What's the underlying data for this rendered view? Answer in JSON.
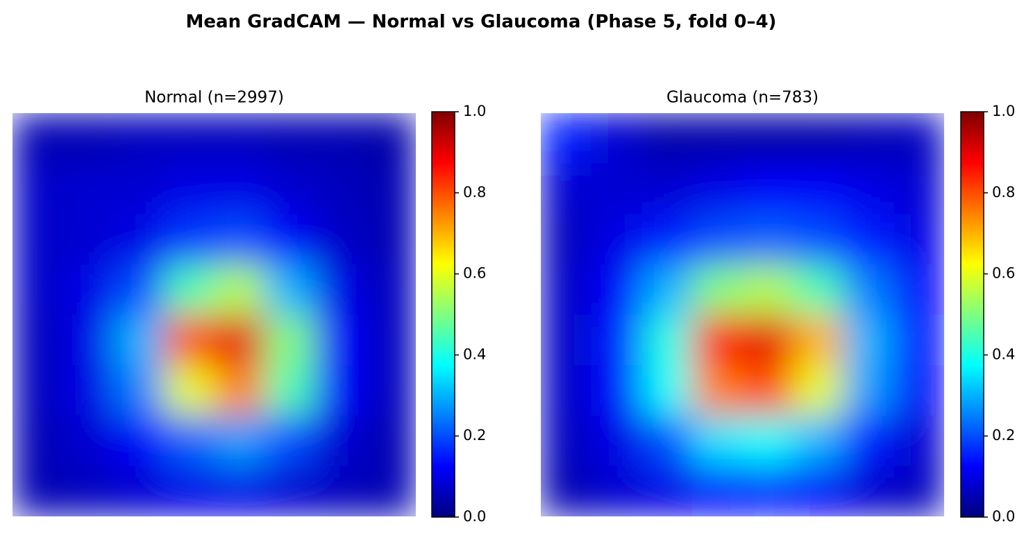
{
  "title": "Mean GradCAM — Normal vs Glaucoma (Phase 5, fold 0–4)",
  "chart_data": [
    {
      "type": "heatmap",
      "title": "Normal  (n=2997)",
      "colormap": "jet",
      "clim": [
        0,
        1
      ],
      "cticks": [
        {
          "value": 0,
          "label": "0.0"
        },
        0.2,
        0.4,
        0.6,
        0.8,
        {
          "value": 1,
          "label": "1.0"
        }
      ],
      "values": [
        [
          0.05,
          0.05,
          0.06,
          0.06,
          0.06,
          0.05,
          0.05,
          0.04
        ],
        [
          0.07,
          0.08,
          0.08,
          0.1,
          0.1,
          0.08,
          0.06,
          0.05
        ],
        [
          0.07,
          0.08,
          0.1,
          0.18,
          0.2,
          0.12,
          0.07,
          0.05
        ],
        [
          0.07,
          0.1,
          0.2,
          0.45,
          0.55,
          0.3,
          0.1,
          0.06
        ],
        [
          0.06,
          0.1,
          0.3,
          0.8,
          0.9,
          0.5,
          0.12,
          0.06
        ],
        [
          0.06,
          0.1,
          0.25,
          0.6,
          0.75,
          0.45,
          0.12,
          0.06
        ],
        [
          0.05,
          0.08,
          0.12,
          0.22,
          0.28,
          0.2,
          0.08,
          0.05
        ],
        [
          0.05,
          0.06,
          0.08,
          0.1,
          0.1,
          0.08,
          0.06,
          0.05
        ]
      ]
    },
    {
      "type": "heatmap",
      "title": "Glaucoma  (n=783)",
      "colormap": "jet",
      "clim": [
        0,
        1
      ],
      "cticks": [
        {
          "value": 0,
          "label": "0.0"
        },
        0.2,
        0.4,
        0.6,
        0.8,
        {
          "value": 1,
          "label": "1.0"
        }
      ],
      "values": [
        [
          0.15,
          0.08,
          0.04,
          0.04,
          0.04,
          0.04,
          0.05,
          0.06
        ],
        [
          0.08,
          0.08,
          0.08,
          0.1,
          0.12,
          0.12,
          0.1,
          0.08
        ],
        [
          0.06,
          0.1,
          0.15,
          0.2,
          0.22,
          0.2,
          0.15,
          0.1
        ],
        [
          0.07,
          0.12,
          0.3,
          0.5,
          0.55,
          0.45,
          0.25,
          0.12
        ],
        [
          0.07,
          0.15,
          0.4,
          0.85,
          0.9,
          0.7,
          0.3,
          0.14
        ],
        [
          0.07,
          0.14,
          0.38,
          0.75,
          0.8,
          0.6,
          0.28,
          0.12
        ],
        [
          0.06,
          0.1,
          0.2,
          0.35,
          0.38,
          0.3,
          0.15,
          0.08
        ],
        [
          0.05,
          0.08,
          0.1,
          0.14,
          0.15,
          0.12,
          0.08,
          0.06
        ]
      ]
    }
  ]
}
